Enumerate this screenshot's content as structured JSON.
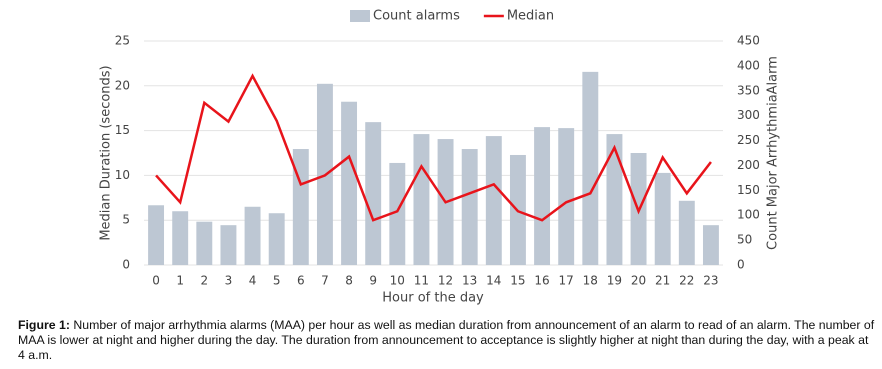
{
  "chart_data": {
    "type": "bar-line",
    "categories": [
      "0",
      "1",
      "2",
      "3",
      "4",
      "5",
      "6",
      "7",
      "8",
      "9",
      "10",
      "11",
      "12",
      "13",
      "14",
      "15",
      "16",
      "17",
      "18",
      "19",
      "20",
      "21",
      "22",
      "23"
    ],
    "series": [
      {
        "name": "Count alarms",
        "type": "bar",
        "axis": "y2",
        "color": "#bdc7d3",
        "values": [
          120,
          108,
          87,
          80,
          117,
          104,
          233,
          364,
          328,
          287,
          205,
          263,
          253,
          233,
          259,
          221,
          277,
          275,
          388,
          263,
          225,
          185,
          129,
          80
        ]
      },
      {
        "name": "Median",
        "type": "line",
        "color": "#e8141b",
        "values": [
          10.0,
          7.0,
          18.1,
          16.0,
          21.1,
          16.1,
          9.0,
          10.0,
          12.1,
          5.0,
          6.0,
          11.0,
          7.0,
          8.0,
          9.0,
          6.0,
          5.0,
          7.0,
          8.0,
          13.1,
          6.0,
          12.0,
          8.0,
          11.5
        ]
      }
    ],
    "ylim": [
      0,
      25
    ],
    "yticks": [
      0,
      5,
      10,
      15,
      20,
      25
    ],
    "y2lim": [
      0,
      450
    ],
    "y2ticks": [
      0,
      50,
      100,
      150,
      200,
      250,
      300,
      350,
      400,
      450
    ],
    "ylabel": "Median Duration (seconds)",
    "y2label": "Count Major ArrhythmiaAlarm",
    "xlabel": "Hour of the day",
    "grid": true,
    "legend": "top"
  },
  "caption": {
    "label": "Figure 1:",
    "text": "Number of major arrhythmia alarms (MAA) per hour as well as median duration from announcement of an alarm to read of an alarm. The number of MAA is lower at night and higher during the day. The duration from announcement to acceptance is slightly higher at night than during the day, with a peak at 4 a.m."
  }
}
